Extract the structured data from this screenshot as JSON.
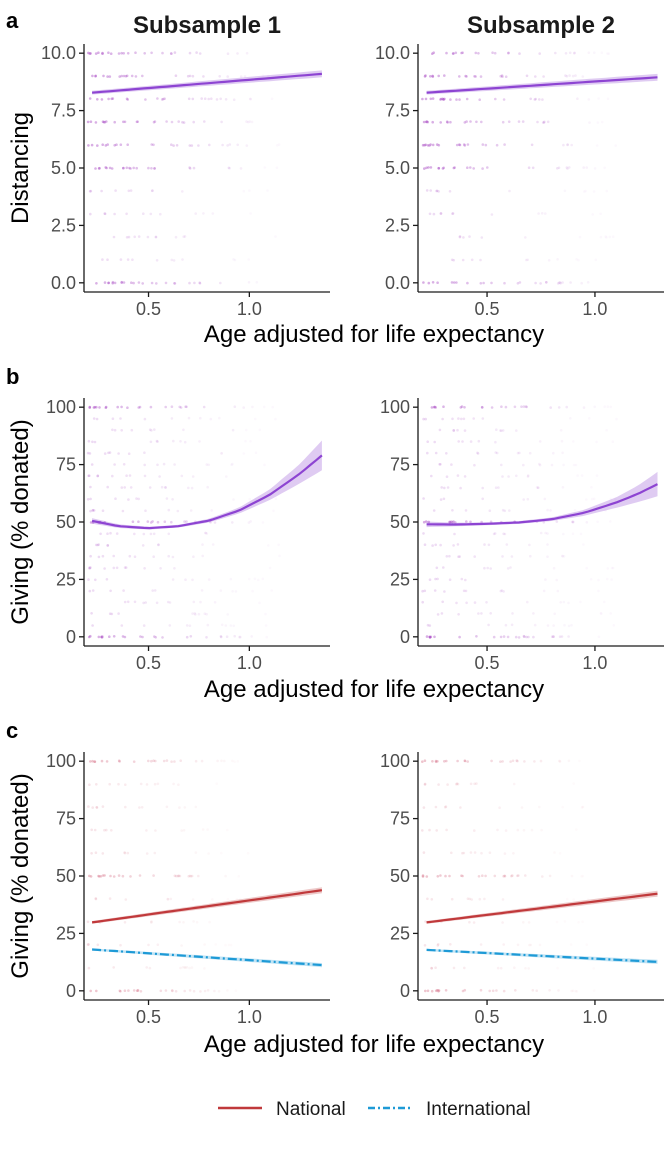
{
  "column_titles": [
    "Subsample 1",
    "Subsample 2"
  ],
  "panel_letters": [
    "a",
    "b",
    "c"
  ],
  "legend": {
    "items": [
      {
        "label": "National",
        "color": "#c0393b",
        "dash": "solid"
      },
      {
        "label": "International",
        "color": "#1e9ad6",
        "dash": "dotdash"
      }
    ]
  },
  "chart_data": [
    {
      "id": "a1",
      "type": "scatter",
      "panel": "a",
      "column": "Subsample 1",
      "ylabel": "Distancing",
      "xlabel": "Age adjusted for life expectancy",
      "xlim": [
        0.18,
        1.4
      ],
      "ylim": [
        -0.4,
        10.4
      ],
      "xticks": [
        "0.5",
        "1.0"
      ],
      "yticks": [
        "0.0",
        "2.5",
        "5.0",
        "7.5",
        "10.0"
      ],
      "points": {
        "color": "#a646c2",
        "x_range": [
          0.2,
          1.15
        ],
        "levels": [
          0,
          1,
          2,
          3,
          4,
          5,
          6,
          7,
          8,
          9,
          10
        ]
      },
      "series": [
        {
          "name": "",
          "color": "#8d44d2",
          "x": [
            0.22,
            1.36
          ],
          "y": [
            8.28,
            9.1
          ],
          "ci": [
            0.08,
            0.15
          ]
        }
      ]
    },
    {
      "id": "a2",
      "type": "scatter",
      "panel": "a",
      "column": "Subsample 2",
      "ylabel": "",
      "xlabel": "",
      "xlim": [
        0.18,
        1.32
      ],
      "ylim": [
        -0.4,
        10.4
      ],
      "xticks": [
        "0.5",
        "1.0"
      ],
      "yticks": [
        "0.0",
        "2.5",
        "5.0",
        "7.5",
        "10.0"
      ],
      "points": {
        "color": "#a646c2",
        "x_range": [
          0.2,
          1.1
        ],
        "levels": [
          0,
          1,
          2,
          3,
          4,
          5,
          6,
          7,
          8,
          9,
          10
        ]
      },
      "series": [
        {
          "name": "",
          "color": "#8d44d2",
          "x": [
            0.22,
            1.29
          ],
          "y": [
            8.28,
            8.95
          ],
          "ci": [
            0.08,
            0.15
          ]
        }
      ]
    },
    {
      "id": "b1",
      "type": "scatter",
      "panel": "b",
      "column": "Subsample 1",
      "ylabel": "Giving (% donated)",
      "xlabel": "Age adjusted for life expectancy",
      "xlim": [
        0.18,
        1.4
      ],
      "ylim": [
        -4,
        104
      ],
      "xticks": [
        "0.5",
        "1.0"
      ],
      "yticks": [
        "0",
        "25",
        "50",
        "75",
        "100"
      ],
      "points": {
        "color": "#a646c2",
        "x_range": [
          0.2,
          1.15
        ],
        "levels": [
          0,
          5,
          10,
          15,
          20,
          25,
          30,
          35,
          40,
          45,
          50,
          55,
          60,
          65,
          70,
          75,
          80,
          85,
          90,
          95,
          100
        ]
      },
      "series": [
        {
          "name": "",
          "color": "#8d44d2",
          "x": [
            0.22,
            0.35,
            0.5,
            0.65,
            0.8,
            0.95,
            1.1,
            1.25,
            1.36
          ],
          "y": [
            50.5,
            48.2,
            47.3,
            48.2,
            50.6,
            55.0,
            61.8,
            71.0,
            79.0
          ],
          "ci": [
            1.2,
            0.8,
            0.6,
            0.6,
            0.8,
            1.3,
            2.3,
            4.2,
            6.5
          ]
        }
      ]
    },
    {
      "id": "b2",
      "type": "scatter",
      "panel": "b",
      "column": "Subsample 2",
      "ylabel": "",
      "xlabel": "",
      "xlim": [
        0.18,
        1.32
      ],
      "ylim": [
        -4,
        104
      ],
      "xticks": [
        "0.5",
        "1.0"
      ],
      "yticks": [
        "0",
        "25",
        "50",
        "75",
        "100"
      ],
      "points": {
        "color": "#a646c2",
        "x_range": [
          0.2,
          1.1
        ],
        "levels": [
          0,
          5,
          10,
          15,
          20,
          25,
          30,
          35,
          40,
          45,
          50,
          55,
          60,
          65,
          70,
          75,
          80,
          85,
          90,
          95,
          100
        ]
      },
      "series": [
        {
          "name": "",
          "color": "#8d44d2",
          "x": [
            0.22,
            0.35,
            0.5,
            0.65,
            0.8,
            0.95,
            1.1,
            1.2,
            1.29
          ],
          "y": [
            49.0,
            48.9,
            49.2,
            49.8,
            51.2,
            54.0,
            58.5,
            62.3,
            66.5
          ],
          "ci": [
            1.2,
            0.8,
            0.6,
            0.6,
            0.8,
            1.3,
            2.3,
            3.6,
            5.3
          ]
        }
      ]
    },
    {
      "id": "c1",
      "type": "scatter",
      "panel": "c",
      "column": "Subsample 1",
      "ylabel": "Giving (% donated)",
      "xlabel": "Age adjusted for life expectancy",
      "xlim": [
        0.18,
        1.4
      ],
      "ylim": [
        -4,
        104
      ],
      "xticks": [
        "0.5",
        "1.0"
      ],
      "yticks": [
        "0",
        "25",
        "50",
        "75",
        "100"
      ],
      "points": {
        "color": "#d97a8f",
        "x_range": [
          0.2,
          1.0
        ],
        "levels": [
          0,
          10,
          20,
          30,
          40,
          50,
          60,
          70,
          80,
          90,
          100
        ]
      },
      "series": [
        {
          "name": "National",
          "color": "#c0393b",
          "dash": "solid",
          "x": [
            0.22,
            1.36
          ],
          "y": [
            29.8,
            43.8
          ],
          "ci": [
            0.6,
            1.3
          ]
        },
        {
          "name": "International",
          "color": "#1e9ad6",
          "dash": "dotdash",
          "x": [
            0.22,
            1.36
          ],
          "y": [
            18.0,
            11.2
          ],
          "ci": [
            0.5,
            0.9
          ]
        }
      ]
    },
    {
      "id": "c2",
      "type": "scatter",
      "panel": "c",
      "column": "Subsample 2",
      "ylabel": "",
      "xlabel": "",
      "xlim": [
        0.18,
        1.32
      ],
      "ylim": [
        -4,
        104
      ],
      "xticks": [
        "0.5",
        "1.0"
      ],
      "yticks": [
        "0",
        "25",
        "50",
        "75",
        "100"
      ],
      "points": {
        "color": "#d97a8f",
        "x_range": [
          0.2,
          1.0
        ],
        "levels": [
          0,
          10,
          20,
          30,
          40,
          50,
          60,
          70,
          80,
          90,
          100
        ]
      },
      "series": [
        {
          "name": "National",
          "color": "#c0393b",
          "dash": "solid",
          "x": [
            0.22,
            1.29
          ],
          "y": [
            29.8,
            42.3
          ],
          "ci": [
            0.6,
            1.3
          ]
        },
        {
          "name": "International",
          "color": "#1e9ad6",
          "dash": "dotdash",
          "x": [
            0.22,
            1.29
          ],
          "y": [
            17.8,
            12.6
          ],
          "ci": [
            0.5,
            0.9
          ]
        }
      ]
    }
  ]
}
